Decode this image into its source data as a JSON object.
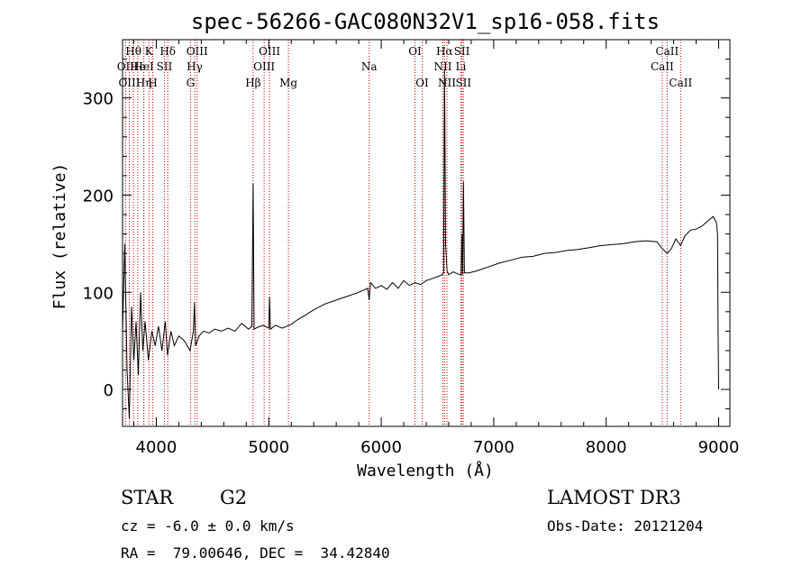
{
  "chart_data": {
    "type": "line",
    "title": "spec-56266-GAC080N32V1_sp16-058.fits",
    "xlabel": "Wavelength (Å)",
    "ylabel": "Flux (relative)",
    "xlim": [
      3700,
      9100
    ],
    "ylim": [
      -38,
      360
    ],
    "xticks": [
      4000,
      5000,
      6000,
      7000,
      8000,
      9000
    ],
    "yticks": [
      0,
      100,
      200,
      300
    ],
    "line_color": "#000000",
    "marker_color": "#cc0000",
    "spectrum": {
      "x": [
        3700,
        3720,
        3740,
        3760,
        3780,
        3800,
        3820,
        3840,
        3860,
        3880,
        3900,
        3930,
        3960,
        3990,
        4020,
        4050,
        4080,
        4100,
        4130,
        4160,
        4200,
        4250,
        4300,
        4330,
        4340,
        4350,
        4380,
        4420,
        4470,
        4520,
        4580,
        4640,
        4700,
        4760,
        4820,
        4850,
        4861,
        4870,
        4900,
        4950,
        5000,
        5007,
        5015,
        5060,
        5120,
        5200,
        5260,
        5320,
        5400,
        5500,
        5600,
        5700,
        5800,
        5880,
        5893,
        5905,
        5950,
        6000,
        6050,
        6100,
        6150,
        6200,
        6250,
        6300,
        6350,
        6400,
        6450,
        6500,
        6540,
        6555,
        6563,
        6572,
        6585,
        6600,
        6640,
        6680,
        6710,
        6717,
        6724,
        6731,
        6740,
        6780,
        6850,
        6950,
        7050,
        7150,
        7250,
        7350,
        7450,
        7550,
        7650,
        7750,
        7850,
        7950,
        8050,
        8150,
        8250,
        8350,
        8450,
        8498,
        8542,
        8580,
        8620,
        8662,
        8700,
        8750,
        8800,
        8850,
        8900,
        8950,
        8980,
        8990,
        8995,
        9000
      ],
      "y": [
        60,
        150,
        20,
        -30,
        85,
        30,
        70,
        15,
        100,
        40,
        70,
        30,
        60,
        45,
        65,
        40,
        70,
        35,
        60,
        45,
        55,
        50,
        40,
        60,
        90,
        45,
        55,
        60,
        58,
        62,
        60,
        63,
        60,
        68,
        62,
        65,
        212,
        62,
        64,
        66,
        63,
        95,
        62,
        66,
        63,
        67,
        72,
        76,
        82,
        88,
        92,
        96,
        100,
        104,
        92,
        110,
        104,
        107,
        103,
        110,
        104,
        112,
        107,
        110,
        108,
        112,
        114,
        116,
        118,
        120,
        330,
        150,
        122,
        118,
        121,
        119,
        118,
        160,
        118,
        214,
        120,
        120,
        122,
        126,
        130,
        133,
        136,
        137,
        140,
        141,
        143,
        144,
        146,
        148,
        149,
        150,
        152,
        153,
        152,
        145,
        140,
        145,
        155,
        148,
        158,
        164,
        165,
        168,
        173,
        178,
        172,
        160,
        60,
        0
      ]
    },
    "lines": [
      {
        "label": "Hθ",
        "wl": 3797,
        "row": 1
      },
      {
        "label": "OII",
        "wl": 3727,
        "row": 2
      },
      {
        "label": "OIII",
        "wl": 3760,
        "row": 3
      },
      {
        "label": "He",
        "wl": 3835,
        "row": 2
      },
      {
        "label": "Hη",
        "wl": 3889,
        "row": 3
      },
      {
        "label": "K",
        "wl": 3934,
        "row": 1
      },
      {
        "label": "H",
        "wl": 3969,
        "row": 3
      },
      {
        "label": "HeI",
        "wl": 3889,
        "row": 2
      },
      {
        "label": "SII",
        "wl": 4072,
        "row": 2
      },
      {
        "label": "Hδ",
        "wl": 4102,
        "row": 1
      },
      {
        "label": "OIII",
        "wl": 4363,
        "row": 1
      },
      {
        "label": "Hγ",
        "wl": 4341,
        "row": 2
      },
      {
        "label": "G",
        "wl": 4304,
        "row": 3
      },
      {
        "label": "Hβ",
        "wl": 4861,
        "row": 3
      },
      {
        "label": "OIII",
        "wl": 4959,
        "row": 2
      },
      {
        "label": "OIII",
        "wl": 5007,
        "row": 1
      },
      {
        "label": "Mg",
        "wl": 5175,
        "row": 3
      },
      {
        "label": "Na",
        "wl": 5893,
        "row": 2
      },
      {
        "label": "OI",
        "wl": 6300,
        "row": 1
      },
      {
        "label": "OI",
        "wl": 6364,
        "row": 3
      },
      {
        "label": "Hα",
        "wl": 6563,
        "row": 1
      },
      {
        "label": "NII",
        "wl": 6548,
        "row": 2
      },
      {
        "label": "NII",
        "wl": 6584,
        "row": 3
      },
      {
        "label": "SII",
        "wl": 6717,
        "row": 1
      },
      {
        "label": "Li",
        "wl": 6708,
        "row": 2
      },
      {
        "label": "SII",
        "wl": 6731,
        "row": 3
      },
      {
        "label": "CaII",
        "wl": 8542,
        "row": 1
      },
      {
        "label": "CaII",
        "wl": 8498,
        "row": 2
      },
      {
        "label": "CaII",
        "wl": 8662,
        "row": 3
      }
    ]
  },
  "info": {
    "object_type": "STAR",
    "subclass": "G2",
    "survey": "LAMOST DR3",
    "cz": "cz = -6.0 ± 0.0 km/s",
    "obs_date": "Obs-Date: 20121204",
    "coords": "RA =  79.00646, DEC =  34.42840"
  }
}
